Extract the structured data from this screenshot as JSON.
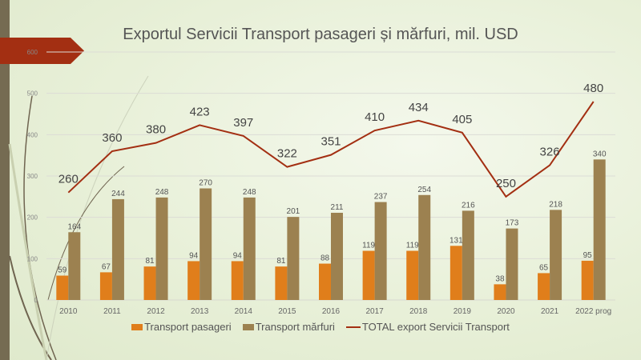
{
  "chart_data": {
    "type": "bar",
    "title": "Exportul Servicii Transport pasageri și mărfuri, mil. USD",
    "categories": [
      "2010",
      "2011",
      "2012",
      "2013",
      "2014",
      "2015",
      "2016",
      "2017",
      "2018",
      "2019",
      "2020",
      "2021",
      "2022 prog"
    ],
    "series": [
      {
        "name": "Transport pasageri",
        "type": "bar",
        "color": "#e07e1b",
        "values": [
          59,
          67,
          81,
          94,
          94,
          81,
          88,
          119,
          119,
          131,
          38,
          65,
          95
        ]
      },
      {
        "name": "Transport mărfuri",
        "type": "bar",
        "color": "#9c8150",
        "values": [
          164,
          244,
          248,
          270,
          248,
          201,
          211,
          237,
          254,
          216,
          173,
          218,
          340
        ]
      },
      {
        "name": "TOTAL export Servicii Transport",
        "type": "line",
        "color": "#a32f12",
        "values": [
          260,
          360,
          380,
          423,
          397,
          322,
          351,
          410,
          434,
          405,
          250,
          326,
          480
        ]
      }
    ],
    "ylim": [
      0,
      600
    ],
    "yticks": [
      "0",
      "100",
      "200",
      "300",
      "400",
      "500",
      "600"
    ],
    "grid": true,
    "legend": "bottom"
  }
}
